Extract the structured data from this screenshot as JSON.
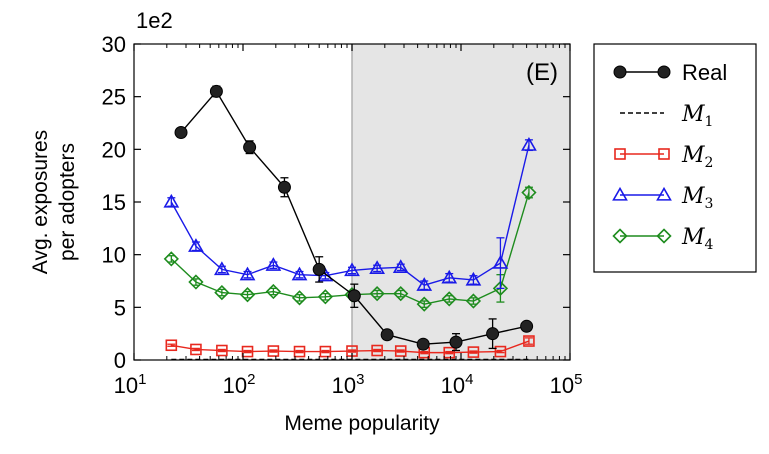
{
  "chart_data": {
    "type": "line",
    "panel_label": "(E)",
    "title": "",
    "xlabel": "Meme popularity",
    "ylabel_lines": [
      "Avg. exposures",
      "per adopters"
    ],
    "y_multiplier_label": "1e2",
    "x_scale": "log",
    "xlim": [
      10,
      100000
    ],
    "ylim": [
      0,
      30
    ],
    "x_ticks": [
      {
        "value": 10,
        "base": "10",
        "exp": "1"
      },
      {
        "value": 100,
        "base": "10",
        "exp": "2"
      },
      {
        "value": 1000,
        "base": "10",
        "exp": "3"
      },
      {
        "value": 10000,
        "base": "10",
        "exp": "4"
      },
      {
        "value": 100000,
        "base": "10",
        "exp": "5"
      }
    ],
    "y_ticks": [
      0,
      5,
      10,
      15,
      20,
      25,
      30
    ],
    "shaded_region": {
      "x_from": 1000,
      "x_to": 100000,
      "color": "#e5e5e5"
    },
    "legend_position": "outside-right",
    "series": [
      {
        "name": "Real",
        "label_main": "Real",
        "label_sub": "",
        "label_style": "text",
        "color": "#000000",
        "marker": "filled-circle",
        "line": "solid",
        "x": [
          27,
          57,
          115,
          240,
          500,
          1050,
          2100,
          4500,
          9000,
          19500,
          40000
        ],
        "y": [
          21.6,
          25.5,
          20.2,
          16.4,
          8.6,
          6.1,
          2.4,
          1.5,
          1.7,
          2.5,
          3.2
        ],
        "err": [
          0.3,
          0.5,
          0.6,
          0.9,
          1.2,
          1.1,
          0.3,
          0.3,
          0.8,
          1.4,
          0.3
        ]
      },
      {
        "name": "M1",
        "label_main": "M",
        "label_sub": "1",
        "label_style": "math",
        "color": "#000000",
        "marker": "none",
        "line": "dashed",
        "x": [
          22,
          44000
        ],
        "y": [
          0.05,
          0.05
        ],
        "err": [
          0,
          0
        ]
      },
      {
        "name": "M2",
        "label_main": "M",
        "label_sub": "2",
        "label_style": "math",
        "color": "#e8281e",
        "marker": "open-square",
        "line": "solid",
        "x": [
          22,
          37,
          64,
          110,
          190,
          330,
          570,
          1000,
          1700,
          2800,
          4600,
          7800,
          13000,
          23000,
          42000
        ],
        "y": [
          1.4,
          1.0,
          0.9,
          0.8,
          0.85,
          0.8,
          0.8,
          0.85,
          0.9,
          0.85,
          0.7,
          0.7,
          0.75,
          0.8,
          1.8
        ],
        "err": [
          0.1,
          0.1,
          0.1,
          0.1,
          0.1,
          0.1,
          0.1,
          0.1,
          0.1,
          0.1,
          0.1,
          0.1,
          0.1,
          0.1,
          0.3
        ]
      },
      {
        "name": "M3",
        "label_main": "M",
        "label_sub": "3",
        "label_style": "math",
        "color": "#1a1ae8",
        "marker": "open-triangle",
        "line": "solid",
        "x": [
          22,
          37,
          64,
          110,
          190,
          330,
          570,
          1000,
          1700,
          2800,
          4600,
          7800,
          13000,
          23000,
          42000
        ],
        "y": [
          15.0,
          10.8,
          8.6,
          8.1,
          9.0,
          8.1,
          8.0,
          8.5,
          8.7,
          8.8,
          7.1,
          7.8,
          7.6,
          9.2,
          20.4
        ],
        "err": [
          0.4,
          0.4,
          0.3,
          0.3,
          0.3,
          0.3,
          0.3,
          0.3,
          0.3,
          0.3,
          0.4,
          0.4,
          0.4,
          2.4,
          0.5
        ]
      },
      {
        "name": "M4",
        "label_main": "M",
        "label_sub": "4",
        "label_style": "math",
        "color": "#1e8c1e",
        "marker": "open-diamond",
        "line": "solid",
        "x": [
          22,
          37,
          64,
          110,
          190,
          330,
          570,
          1000,
          1700,
          2800,
          4600,
          7800,
          13000,
          23000,
          42000
        ],
        "y": [
          9.6,
          7.4,
          6.4,
          6.2,
          6.5,
          5.9,
          6.0,
          6.2,
          6.3,
          6.3,
          5.3,
          5.8,
          5.6,
          6.8,
          15.9
        ],
        "err": [
          0.3,
          0.3,
          0.3,
          0.3,
          0.3,
          0.3,
          0.3,
          0.3,
          0.3,
          0.3,
          0.3,
          0.3,
          0.3,
          1.3,
          0.5
        ]
      }
    ]
  }
}
